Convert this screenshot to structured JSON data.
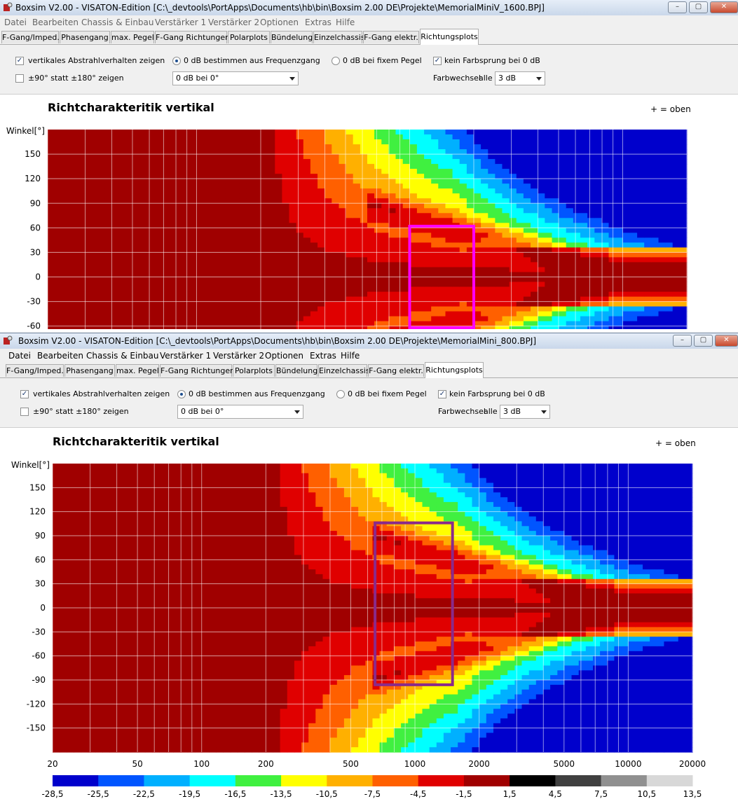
{
  "window1": {
    "title": "Boxsim V2.00 - VISATON-Edition [C:\\_devtools\\PortApps\\Documents\\hb\\bin\\Boxsim 2.00 DE\\Projekte\\MemorialMiniV_1600.BPJ]"
  },
  "window2": {
    "title": "Boxsim V2.00 - VISATON-Edition [C:\\_devtools\\PortApps\\Documents\\hb\\bin\\Boxsim 2.00 DE\\Projekte\\MemorialMini_800.BPJ]"
  },
  "menu": [
    "Datei",
    "Bearbeiten",
    "Chassis & Einbau",
    "Verstärker 1",
    "Verstärker 2",
    "Optionen",
    "Extras",
    "Hilfe"
  ],
  "tabs": [
    "F-Gang/Imped.",
    "Phasengang",
    "max. Pegel",
    "F-Gang Richtungen",
    "Polarplots",
    "Bündelung",
    "Einzelchassis",
    "F-Gang elektr.",
    "Richtungsplots"
  ],
  "active_tab": "Richtungsplots",
  "controls": {
    "vertical_checkbox_label": "vertikales Abstrahlverhalten zeigen",
    "vertical_checked": true,
    "range_checkbox_label": "±90° statt ±180° zeigen",
    "range_checked": false,
    "radio_freq_label": "0 dB bestimmen aus Frequenzgang",
    "radio_fixed_label": "0 dB bei fixem Pegel",
    "radio_freq_selected": true,
    "reference_select": "0 dB bei 0°",
    "no_color_jump_label": "kein Farbsprung bei 0 dB",
    "no_color_jump_checked": true,
    "color_change_label": "Farbwechsel",
    "color_change_all": "alle",
    "color_step_select": "3 dB"
  },
  "chart_title": "Richtcharakteritik vertikal",
  "legend_note": "+ = oben",
  "colors": {
    "accent": "#ff00ff",
    "box2": "#8a2a8a"
  },
  "chart_data": [
    {
      "type": "heatmap",
      "title": "Richtcharakteritik vertikal",
      "ylabel": "Winkel[°]",
      "y_ticks": [
        150,
        120,
        90,
        60,
        30,
        0,
        -30,
        -60
      ],
      "y_range": [
        -75,
        180
      ],
      "x_scale": "log",
      "x_range": [
        20,
        20000
      ],
      "highlight_box": {
        "freq_range": [
          1000,
          2000
        ],
        "angle_range": [
          -62,
          62
        ]
      }
    },
    {
      "type": "heatmap",
      "title": "Richtcharakteritik vertikal",
      "ylabel": "Winkel[°]",
      "y_ticks": [
        150,
        120,
        90,
        60,
        30,
        0,
        -30,
        -60,
        -90,
        -120,
        -150
      ],
      "y_range": [
        -180,
        180
      ],
      "x_scale": "log",
      "x_range": [
        20,
        20000
      ],
      "x_ticks": [
        "20",
        "50",
        "100",
        "200",
        "500",
        "1000",
        "2000",
        "5000",
        "10000",
        "20000"
      ],
      "highlight_box": {
        "freq_range": [
          650,
          1500
        ],
        "angle_range": [
          -96,
          106
        ]
      },
      "color_scale": {
        "levels": [
          "-28,5",
          "-25,5",
          "-22,5",
          "-19,5",
          "-16,5",
          "-13,5",
          "-10,5",
          "-7,5",
          "-4,5",
          "-1,5",
          "1,5",
          "4,5",
          "7,5",
          "10,5",
          "13,5"
        ],
        "colors": [
          "#0000cc",
          "#0055ff",
          "#00b0ff",
          "#00ffff",
          "#40f040",
          "#ffff00",
          "#ffb000",
          "#ff6000",
          "#e00000",
          "#a00000",
          "#000000",
          "#404040",
          "#909090",
          "#d8d8d8"
        ]
      }
    }
  ]
}
